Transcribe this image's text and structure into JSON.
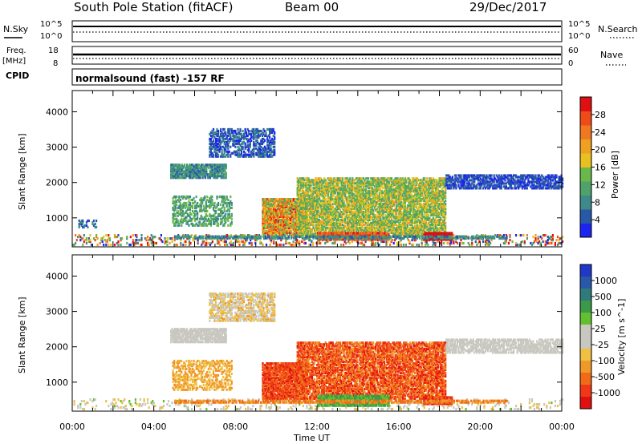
{
  "header": {
    "title": "South Pole Station (fitACF)",
    "beam": "Beam 00",
    "date": "29/Dec/2017"
  },
  "top_panels": {
    "nsky": {
      "label": "N.Sky",
      "tick_top": "10^5",
      "tick_bottom": "10^0"
    },
    "nsearch": {
      "label": "N.Search",
      "tick_top": "10^5",
      "tick_bottom": "10^0"
    },
    "freq": {
      "label_line1": "Freq.",
      "label_line2": "[MHz]",
      "tick_top": "18",
      "tick_bottom": "8"
    },
    "nave": {
      "label": "Nave",
      "tick_top": "60",
      "tick_bottom": "0"
    },
    "cpid": {
      "label": "CPID",
      "value": "normalsound (fast) -157 RF"
    }
  },
  "colors": {
    "power_scale": [
      "#1d24f0",
      "#2858a8",
      "#3e8a8a",
      "#4fa36a",
      "#6ab84a",
      "#e8c020",
      "#f0a020",
      "#f07820",
      "#f04a18",
      "#e01010"
    ],
    "velocity_scale": [
      "#e01010",
      "#f03818",
      "#f06a18",
      "#f09828",
      "#f0c040",
      "#c8c8c0",
      "#c8c8c0",
      "#62c030",
      "#3a9a4a",
      "#2f7a7a",
      "#2858a8",
      "#2038c8"
    ]
  },
  "chart_data": [
    {
      "type": "heatmap",
      "name": "power-panel",
      "xlabel": "",
      "ylabel": "Slant Range [km]",
      "xlim": [
        0,
        24
      ],
      "ylim": [
        180,
        4600
      ],
      "y_ticks": [
        "1000",
        "2000",
        "3000",
        "4000"
      ],
      "colorbar": {
        "label": "Power [dB]",
        "range": [
          0,
          32
        ],
        "ticks": [
          "4",
          "8",
          "12",
          "16",
          "20",
          "24",
          "28"
        ]
      },
      "regions": [
        {
          "t0": 0.0,
          "t1": 24.0,
          "r0": 200,
          "r1": 500,
          "dens": 0.22,
          "cmin": 0.0,
          "cmax": 1.0
        },
        {
          "t0": 0.3,
          "t1": 1.2,
          "r0": 700,
          "r1": 900,
          "dens": 0.35,
          "cmin": 0.05,
          "cmax": 0.3
        },
        {
          "t0": 4.8,
          "t1": 7.5,
          "r0": 2100,
          "r1": 2500,
          "dens": 0.8,
          "cmin": 0.15,
          "cmax": 0.4
        },
        {
          "t0": 6.7,
          "t1": 9.9,
          "r0": 2700,
          "r1": 3500,
          "dens": 0.55,
          "cmin": 0.05,
          "cmax": 0.25
        },
        {
          "t0": 4.9,
          "t1": 7.8,
          "r0": 750,
          "r1": 1600,
          "dens": 0.45,
          "cmin": 0.2,
          "cmax": 0.5
        },
        {
          "t0": 9.3,
          "t1": 11.5,
          "r0": 500,
          "r1": 1500,
          "dens": 0.9,
          "cmin": 0.35,
          "cmax": 0.95
        },
        {
          "t0": 11.0,
          "t1": 18.3,
          "r0": 500,
          "r1": 2100,
          "dens": 0.75,
          "cmin": 0.3,
          "cmax": 0.65
        },
        {
          "t0": 12.0,
          "t1": 15.5,
          "r0": 350,
          "r1": 550,
          "dens": 0.95,
          "cmin": 0.7,
          "cmax": 0.95
        },
        {
          "t0": 17.2,
          "t1": 18.6,
          "r0": 350,
          "r1": 560,
          "dens": 0.95,
          "cmin": 0.9,
          "cmax": 1.0
        },
        {
          "t0": 5.0,
          "t1": 21.3,
          "r0": 390,
          "r1": 470,
          "dens": 0.7,
          "cmin": 0.15,
          "cmax": 0.35
        },
        {
          "t0": 18.3,
          "t1": 24.0,
          "r0": 1800,
          "r1": 2200,
          "dens": 0.65,
          "cmin": 0.05,
          "cmax": 0.2
        }
      ]
    },
    {
      "type": "heatmap",
      "name": "velocity-panel",
      "xlabel": "Time UT",
      "ylabel": "Slant Range [km]",
      "xlim": [
        0,
        24
      ],
      "ylim": [
        180,
        4600
      ],
      "x_ticks": [
        "00:00",
        "04:00",
        "08:00",
        "12:00",
        "16:00",
        "20:00",
        "00:00"
      ],
      "y_ticks": [
        "1000",
        "2000",
        "3000",
        "4000"
      ],
      "colorbar": {
        "label": "Velocity [m s^-1]",
        "ticks": [
          "1000",
          "500",
          "100",
          "25",
          "-25",
          "-100",
          "-500",
          "-1000"
        ]
      },
      "regions": [
        {
          "t0": 0.0,
          "t1": 24.0,
          "r0": 200,
          "r1": 500,
          "dens": 0.14,
          "cmin": 0.35,
          "cmax": 0.6
        },
        {
          "t0": 4.8,
          "t1": 7.5,
          "r0": 2100,
          "r1": 2500,
          "dens": 0.8,
          "cmin": 0.45,
          "cmax": 0.55
        },
        {
          "t0": 6.7,
          "t1": 9.9,
          "r0": 2700,
          "r1": 3500,
          "dens": 0.55,
          "cmin": 0.3,
          "cmax": 0.55
        },
        {
          "t0": 4.9,
          "t1": 7.8,
          "r0": 750,
          "r1": 1600,
          "dens": 0.45,
          "cmin": 0.25,
          "cmax": 0.4
        },
        {
          "t0": 9.3,
          "t1": 11.5,
          "r0": 500,
          "r1": 1500,
          "dens": 0.9,
          "cmin": 0.05,
          "cmax": 0.25
        },
        {
          "t0": 11.0,
          "t1": 18.3,
          "r0": 500,
          "r1": 2100,
          "dens": 0.75,
          "cmin": 0.05,
          "cmax": 0.3
        },
        {
          "t0": 12.0,
          "t1": 15.5,
          "r0": 300,
          "r1": 600,
          "dens": 0.9,
          "cmin": 0.62,
          "cmax": 0.72
        },
        {
          "t0": 17.2,
          "t1": 18.6,
          "r0": 350,
          "r1": 560,
          "dens": 0.9,
          "cmin": 0.05,
          "cmax": 0.2
        },
        {
          "t0": 5.0,
          "t1": 21.3,
          "r0": 390,
          "r1": 470,
          "dens": 0.7,
          "cmin": 0.22,
          "cmax": 0.28
        },
        {
          "t0": 18.3,
          "t1": 24.0,
          "r0": 1800,
          "r1": 2200,
          "dens": 0.65,
          "cmin": 0.45,
          "cmax": 0.55
        }
      ]
    }
  ]
}
